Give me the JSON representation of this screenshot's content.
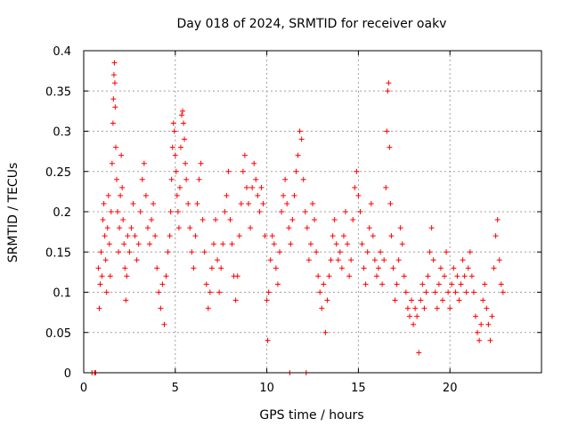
{
  "chart_data": {
    "type": "scatter",
    "title": "Day 018 of 2024, SRMTID for receiver oakv",
    "xlabel": "GPS time / hours",
    "ylabel": "SRMTID / TECUs",
    "xlim": [
      0,
      25
    ],
    "ylim": [
      0,
      0.4
    ],
    "xticks": [
      0,
      5,
      10,
      15,
      20
    ],
    "yticks": [
      0,
      0.05,
      0.1,
      0.15,
      0.2,
      0.25,
      0.3,
      0.35,
      0.4
    ],
    "xtick_labels": [
      "0",
      "5",
      "10",
      "15",
      "20"
    ],
    "ytick_labels": [
      "0",
      "0.05",
      "0.1",
      "0.15",
      "0.2",
      "0.25",
      "0.3",
      "0.35",
      "0.4"
    ],
    "grid": true,
    "marker": "+",
    "color": "#ff0000",
    "series": [
      {
        "name": "SRMTID",
        "points": [
          [
            0.45,
            0
          ],
          [
            0.6,
            0
          ],
          [
            0.65,
            0
          ],
          [
            0.8,
            0.13
          ],
          [
            0.85,
            0.08
          ],
          [
            0.9,
            0.11
          ],
          [
            0.95,
            0.15
          ],
          [
            1.0,
            0.12
          ],
          [
            1.05,
            0.19
          ],
          [
            1.1,
            0.21
          ],
          [
            1.15,
            0.17
          ],
          [
            1.2,
            0.14
          ],
          [
            1.25,
            0.1
          ],
          [
            1.3,
            0.18
          ],
          [
            1.35,
            0.22
          ],
          [
            1.4,
            0.16
          ],
          [
            1.45,
            0.12
          ],
          [
            1.5,
            0.2
          ],
          [
            1.55,
            0.26
          ],
          [
            1.6,
            0.31
          ],
          [
            1.62,
            0.34
          ],
          [
            1.65,
            0.37
          ],
          [
            1.68,
            0.385
          ],
          [
            1.7,
            0.36
          ],
          [
            1.72,
            0.33
          ],
          [
            1.75,
            0.28
          ],
          [
            1.8,
            0.24
          ],
          [
            1.85,
            0.2
          ],
          [
            1.9,
            0.15
          ],
          [
            1.95,
            0.18
          ],
          [
            2.0,
            0.22
          ],
          [
            2.05,
            0.27
          ],
          [
            2.1,
            0.23
          ],
          [
            2.15,
            0.19
          ],
          [
            2.2,
            0.16
          ],
          [
            2.25,
            0.13
          ],
          [
            2.3,
            0.09
          ],
          [
            2.35,
            0.12
          ],
          [
            2.4,
            0.17
          ],
          [
            2.5,
            0.15
          ],
          [
            2.6,
            0.18
          ],
          [
            2.7,
            0.21
          ],
          [
            2.8,
            0.17
          ],
          [
            2.9,
            0.14
          ],
          [
            3.0,
            0.16
          ],
          [
            3.1,
            0.2
          ],
          [
            3.2,
            0.24
          ],
          [
            3.3,
            0.26
          ],
          [
            3.4,
            0.22
          ],
          [
            3.5,
            0.18
          ],
          [
            3.6,
            0.16
          ],
          [
            3.7,
            0.19
          ],
          [
            3.8,
            0.21
          ],
          [
            3.9,
            0.17
          ],
          [
            4.0,
            0.13
          ],
          [
            4.1,
            0.1
          ],
          [
            4.2,
            0.08
          ],
          [
            4.3,
            0.11
          ],
          [
            4.4,
            0.06
          ],
          [
            4.5,
            0.12
          ],
          [
            4.6,
            0.15
          ],
          [
            4.7,
            0.17
          ],
          [
            4.75,
            0.2
          ],
          [
            4.8,
            0.24
          ],
          [
            4.85,
            0.28
          ],
          [
            4.9,
            0.31
          ],
          [
            4.95,
            0.3
          ],
          [
            5.0,
            0.27
          ],
          [
            5.05,
            0.25
          ],
          [
            5.1,
            0.22
          ],
          [
            5.15,
            0.2
          ],
          [
            5.2,
            0.18
          ],
          [
            5.25,
            0.23
          ],
          [
            5.3,
            0.28
          ],
          [
            5.35,
            0.32
          ],
          [
            5.4,
            0.325
          ],
          [
            5.45,
            0.31
          ],
          [
            5.5,
            0.29
          ],
          [
            5.55,
            0.26
          ],
          [
            5.6,
            0.24
          ],
          [
            5.7,
            0.21
          ],
          [
            5.8,
            0.18
          ],
          [
            5.9,
            0.15
          ],
          [
            6.0,
            0.13
          ],
          [
            6.1,
            0.17
          ],
          [
            6.2,
            0.21
          ],
          [
            6.3,
            0.24
          ],
          [
            6.4,
            0.26
          ],
          [
            6.5,
            0.19
          ],
          [
            6.6,
            0.15
          ],
          [
            6.7,
            0.11
          ],
          [
            6.8,
            0.08
          ],
          [
            6.9,
            0.1
          ],
          [
            7.0,
            0.13
          ],
          [
            7.1,
            0.16
          ],
          [
            7.2,
            0.19
          ],
          [
            7.3,
            0.14
          ],
          [
            7.4,
            0.1
          ],
          [
            7.5,
            0.13
          ],
          [
            7.6,
            0.16
          ],
          [
            7.7,
            0.2
          ],
          [
            7.8,
            0.22
          ],
          [
            7.9,
            0.25
          ],
          [
            8.0,
            0.19
          ],
          [
            8.1,
            0.16
          ],
          [
            8.2,
            0.12
          ],
          [
            8.3,
            0.09
          ],
          [
            8.4,
            0.12
          ],
          [
            8.5,
            0.17
          ],
          [
            8.6,
            0.21
          ],
          [
            8.7,
            0.25
          ],
          [
            8.8,
            0.27
          ],
          [
            8.9,
            0.23
          ],
          [
            9.0,
            0.21
          ],
          [
            9.1,
            0.18
          ],
          [
            9.2,
            0.23
          ],
          [
            9.3,
            0.26
          ],
          [
            9.4,
            0.24
          ],
          [
            9.5,
            0.22
          ],
          [
            9.6,
            0.2
          ],
          [
            9.7,
            0.23
          ],
          [
            9.8,
            0.21
          ],
          [
            9.9,
            0.17
          ],
          [
            10.0,
            0.09
          ],
          [
            10.05,
            0.04
          ],
          [
            10.1,
            0.1
          ],
          [
            10.2,
            0.14
          ],
          [
            10.3,
            0.17
          ],
          [
            10.4,
            0.16
          ],
          [
            10.5,
            0.13
          ],
          [
            10.6,
            0.11
          ],
          [
            10.7,
            0.15
          ],
          [
            10.8,
            0.2
          ],
          [
            10.9,
            0.22
          ],
          [
            11.0,
            0.24
          ],
          [
            11.1,
            0.21
          ],
          [
            11.2,
            0.18
          ],
          [
            11.25,
            0
          ],
          [
            11.3,
            0.16
          ],
          [
            11.4,
            0.19
          ],
          [
            11.5,
            0.22
          ],
          [
            11.6,
            0.25
          ],
          [
            11.7,
            0.27
          ],
          [
            11.8,
            0.3
          ],
          [
            11.9,
            0.29
          ],
          [
            12.0,
            0.24
          ],
          [
            12.1,
            0.2
          ],
          [
            12.15,
            0
          ],
          [
            12.2,
            0.18
          ],
          [
            12.3,
            0.14
          ],
          [
            12.4,
            0.16
          ],
          [
            12.5,
            0.21
          ],
          [
            12.6,
            0.19
          ],
          [
            12.7,
            0.15
          ],
          [
            12.8,
            0.12
          ],
          [
            12.9,
            0.1
          ],
          [
            13.0,
            0.08
          ],
          [
            13.1,
            0.11
          ],
          [
            13.2,
            0.05
          ],
          [
            13.3,
            0.09
          ],
          [
            13.4,
            0.12
          ],
          [
            13.5,
            0.14
          ],
          [
            13.6,
            0.17
          ],
          [
            13.7,
            0.19
          ],
          [
            13.8,
            0.16
          ],
          [
            13.9,
            0.14
          ],
          [
            14.0,
            0.15
          ],
          [
            14.1,
            0.13
          ],
          [
            14.2,
            0.17
          ],
          [
            14.3,
            0.2
          ],
          [
            14.4,
            0.16
          ],
          [
            14.5,
            0.12
          ],
          [
            14.6,
            0.14
          ],
          [
            14.7,
            0.19
          ],
          [
            14.8,
            0.23
          ],
          [
            14.9,
            0.25
          ],
          [
            15.0,
            0.22
          ],
          [
            15.1,
            0.2
          ],
          [
            15.2,
            0.16
          ],
          [
            15.3,
            0.13
          ],
          [
            15.4,
            0.11
          ],
          [
            15.5,
            0.15
          ],
          [
            15.6,
            0.18
          ],
          [
            15.7,
            0.21
          ],
          [
            15.8,
            0.17
          ],
          [
            15.9,
            0.14
          ],
          [
            16.0,
            0.12
          ],
          [
            16.1,
            0.13
          ],
          [
            16.2,
            0.15
          ],
          [
            16.3,
            0.11
          ],
          [
            16.4,
            0.14
          ],
          [
            16.5,
            0.23
          ],
          [
            16.55,
            0.3
          ],
          [
            16.6,
            0.35
          ],
          [
            16.65,
            0.36
          ],
          [
            16.7,
            0.28
          ],
          [
            16.75,
            0.21
          ],
          [
            16.8,
            0.17
          ],
          [
            16.9,
            0.13
          ],
          [
            17.0,
            0.09
          ],
          [
            17.1,
            0.11
          ],
          [
            17.2,
            0.14
          ],
          [
            17.3,
            0.18
          ],
          [
            17.4,
            0.16
          ],
          [
            17.5,
            0.12
          ],
          [
            17.6,
            0.1
          ],
          [
            17.7,
            0.08
          ],
          [
            17.8,
            0.07
          ],
          [
            17.9,
            0.09
          ],
          [
            18.0,
            0.06
          ],
          [
            18.1,
            0.08
          ],
          [
            18.2,
            0.07
          ],
          [
            18.3,
            0.025
          ],
          [
            18.4,
            0.09
          ],
          [
            18.5,
            0.11
          ],
          [
            18.6,
            0.08
          ],
          [
            18.7,
            0.1
          ],
          [
            18.8,
            0.12
          ],
          [
            18.9,
            0.15
          ],
          [
            19.0,
            0.18
          ],
          [
            19.1,
            0.14
          ],
          [
            19.2,
            0.1
          ],
          [
            19.3,
            0.08
          ],
          [
            19.4,
            0.11
          ],
          [
            19.5,
            0.13
          ],
          [
            19.6,
            0.09
          ],
          [
            19.7,
            0.12
          ],
          [
            19.8,
            0.15
          ],
          [
            19.9,
            0.1
          ],
          [
            20.0,
            0.08
          ],
          [
            20.1,
            0.11
          ],
          [
            20.2,
            0.13
          ],
          [
            20.3,
            0.1
          ],
          [
            20.4,
            0.12
          ],
          [
            20.5,
            0.09
          ],
          [
            20.6,
            0.11
          ],
          [
            20.7,
            0.14
          ],
          [
            20.8,
            0.12
          ],
          [
            20.9,
            0.1
          ],
          [
            21.0,
            0.13
          ],
          [
            21.1,
            0.15
          ],
          [
            21.2,
            0.12
          ],
          [
            21.3,
            0.1
          ],
          [
            21.4,
            0.07
          ],
          [
            21.5,
            0.05
          ],
          [
            21.6,
            0.04
          ],
          [
            21.7,
            0.06
          ],
          [
            21.8,
            0.09
          ],
          [
            21.9,
            0.11
          ],
          [
            22.0,
            0.08
          ],
          [
            22.1,
            0.06
          ],
          [
            22.2,
            0.04
          ],
          [
            22.3,
            0.07
          ],
          [
            22.4,
            0.13
          ],
          [
            22.5,
            0.17
          ],
          [
            22.6,
            0.19
          ],
          [
            22.7,
            0.14
          ],
          [
            22.8,
            0.11
          ],
          [
            22.9,
            0.1
          ]
        ]
      }
    ]
  }
}
